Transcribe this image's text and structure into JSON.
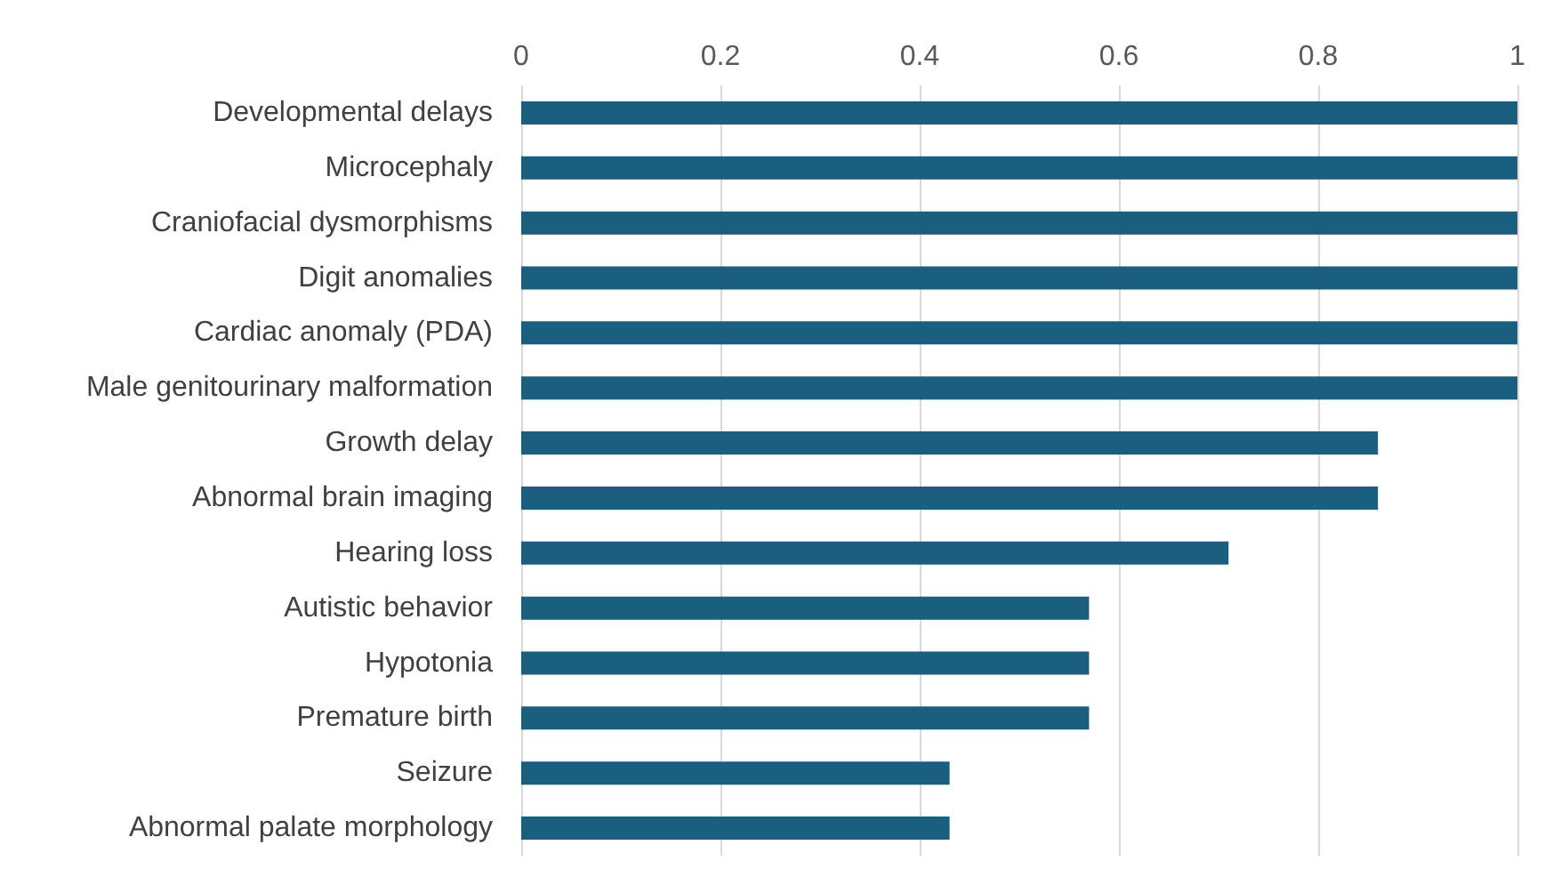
{
  "chart_data": {
    "type": "bar",
    "orientation": "horizontal",
    "categories": [
      "Developmental delays",
      "Microcephaly",
      "Craniofacial dysmorphisms",
      "Digit anomalies",
      "Cardiac anomaly (PDA)",
      "Male genitourinary malformation",
      "Growth delay",
      "Abnormal brain imaging",
      "Hearing loss",
      "Autistic behavior",
      "Hypotonia",
      "Premature birth",
      "Seizure",
      "Abnormal palate morphology"
    ],
    "values": [
      1,
      1,
      1,
      1,
      1,
      1,
      0.86,
      0.86,
      0.71,
      0.57,
      0.57,
      0.57,
      0.43,
      0.43
    ],
    "color": "#1a5e80",
    "xlim": [
      0,
      1
    ],
    "xticks": [
      0,
      0.2,
      0.4,
      0.6,
      0.8,
      1
    ],
    "grid": "x"
  }
}
